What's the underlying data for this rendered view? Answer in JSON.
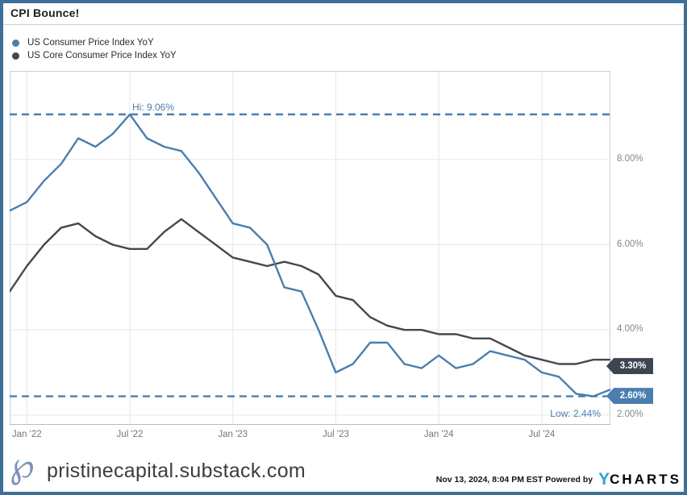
{
  "chart_data": {
    "type": "line",
    "title": "CPI Bounce!",
    "x": [
      "Nov '21",
      "Dec '21",
      "Jan '22",
      "Feb '22",
      "Mar '22",
      "Apr '22",
      "May '22",
      "Jun '22",
      "Jul '22",
      "Aug '22",
      "Sep '22",
      "Oct '22",
      "Nov '22",
      "Dec '22",
      "Jan '23",
      "Feb '23",
      "Mar '23",
      "Apr '23",
      "May '23",
      "Jun '23",
      "Jul '23",
      "Aug '23",
      "Sep '23",
      "Oct '23",
      "Nov '23",
      "Dec '23",
      "Jan '24",
      "Feb '24",
      "Mar '24",
      "Apr '24",
      "May '24",
      "Jun '24",
      "Jul '24",
      "Aug '24",
      "Sep '24",
      "Oct '24"
    ],
    "series": [
      {
        "name": "US Consumer Price Index YoY",
        "color": "#4B7EAF",
        "values": [
          6.8,
          7.0,
          7.5,
          7.9,
          8.5,
          8.3,
          8.6,
          9.06,
          8.5,
          8.3,
          8.2,
          7.7,
          7.1,
          6.5,
          6.4,
          6.0,
          5.0,
          4.9,
          4.0,
          3.0,
          3.2,
          3.7,
          3.7,
          3.2,
          3.1,
          3.4,
          3.1,
          3.2,
          3.5,
          3.4,
          3.3,
          3.0,
          2.9,
          2.5,
          2.44,
          2.6
        ]
      },
      {
        "name": "US Core Consumer Price Index YoY",
        "color": "#45474F",
        "values": [
          4.9,
          5.5,
          6.0,
          6.4,
          6.5,
          6.2,
          6.0,
          5.9,
          5.9,
          6.3,
          6.6,
          6.3,
          6.0,
          5.7,
          5.6,
          5.5,
          5.6,
          5.5,
          5.3,
          4.8,
          4.7,
          4.3,
          4.1,
          4.0,
          4.0,
          3.9,
          3.9,
          3.8,
          3.8,
          3.6,
          3.4,
          3.3,
          3.2,
          3.2,
          3.3,
          3.3
        ]
      }
    ],
    "ylim": [
      1.77,
      10.08
    ],
    "grid": true,
    "legend_position": "top-left",
    "y_ticks": [
      {
        "value": 8,
        "label": "8.00%"
      },
      {
        "value": 6,
        "label": "6.00%"
      },
      {
        "value": 4,
        "label": "4.00%"
      },
      {
        "value": 2,
        "label": "2.00%"
      }
    ],
    "x_ticks": [
      {
        "index": 1,
        "label": "Jan '22"
      },
      {
        "index": 7,
        "label": "Jul '22"
      },
      {
        "index": 13,
        "label": "Jan '23"
      },
      {
        "index": 19,
        "label": "Jul '23"
      },
      {
        "index": 25,
        "label": "Jan '24"
      },
      {
        "index": 31,
        "label": "Jul '24"
      }
    ],
    "hi_marker": {
      "label": "Hi: 9.06%",
      "value": 9.06
    },
    "low_marker": {
      "label": "Low: 2.44%",
      "value": 2.44
    },
    "end_badges": [
      {
        "label": "3.30%",
        "value": 3.3,
        "bg": "#3E4551"
      },
      {
        "label": "2.60%",
        "value": 2.6,
        "bg": "#4B7EAF"
      }
    ],
    "accent_color": "#4B7EAF"
  },
  "footer": {
    "logo_glyph": "℘",
    "site": "pristinecapital.substack.com",
    "timestamp": "Nov 13, 2024, 8:04 PM EST",
    "powered_by": "Powered by",
    "brand": {
      "y": "Y",
      "charts": "CHARTS"
    }
  }
}
